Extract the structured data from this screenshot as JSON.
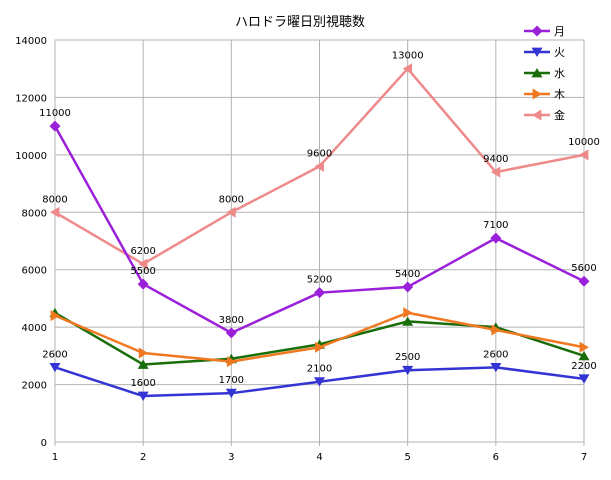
{
  "chart_data": {
    "type": "line",
    "title": "ハロドラ曜日別視聴数",
    "xlabel": "",
    "ylabel": "",
    "x": [
      1,
      2,
      3,
      4,
      5,
      6,
      7
    ],
    "ylim": [
      0,
      14000
    ],
    "yticks": [
      0,
      2000,
      4000,
      6000,
      8000,
      10000,
      12000,
      14000
    ],
    "grid": true,
    "legend_position": "top-right",
    "series": [
      {
        "name": "月",
        "color": "#9b20d9",
        "marker": "diamond",
        "values": [
          11000,
          5500,
          3800,
          5200,
          5400,
          7100,
          5600
        ],
        "show_labels": true
      },
      {
        "name": "火",
        "color": "#3434d4",
        "marker": "triangle-down",
        "values": [
          2600,
          1600,
          1700,
          2100,
          2500,
          2600,
          2200
        ],
        "show_labels": true
      },
      {
        "name": "水",
        "color": "#1a6e0a",
        "marker": "triangle-up",
        "values": [
          4500,
          2700,
          2900,
          3400,
          4200,
          4000,
          3000
        ],
        "show_labels": false
      },
      {
        "name": "木",
        "color": "#f07820",
        "marker": "triangle-right",
        "values": [
          4400,
          3100,
          2800,
          3300,
          4500,
          3900,
          3300
        ],
        "show_labels": false
      },
      {
        "name": "金",
        "color": "#ee8a8a",
        "marker": "triangle-left",
        "values": [
          8000,
          6200,
          8000,
          9600,
          13000,
          9400,
          10000
        ],
        "show_labels": true
      }
    ]
  }
}
